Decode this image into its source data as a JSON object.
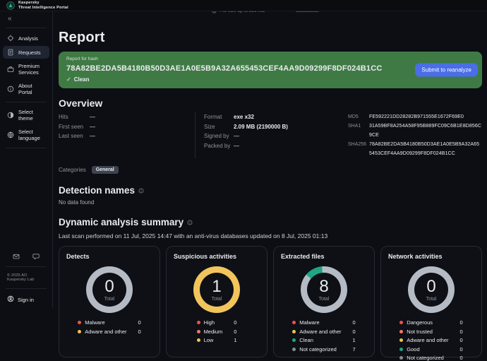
{
  "topbar": {
    "brand": "Kaspersky",
    "subtitle": "Threat Intelligence Portal"
  },
  "peek": {
    "clipped_text": "File size up to 256 MB"
  },
  "sidebar": {
    "collapse_glyph": "«",
    "nav": [
      {
        "label": "Analysis"
      },
      {
        "label": "Requests"
      },
      {
        "label": "Premium Services"
      },
      {
        "label": "About Portal"
      }
    ],
    "preferences": [
      {
        "label": "Select theme"
      },
      {
        "label": "Select language"
      }
    ],
    "copyright": "© 2025 AO Kaspersky Lab",
    "sign_in": "Sign in"
  },
  "main": {
    "report_title": "Report",
    "banner": {
      "label": "Report for hash",
      "hash": "78A82BE2DA5B4180B50D3AE1A0E5B9A32A655453CEF4AA9D09299F8DF024B1CC",
      "verdict": "Clean",
      "check_glyph": "✓",
      "reanalyze_button": "Submit to reanalyze"
    },
    "overview": {
      "heading": "Overview",
      "stats": [
        {
          "label": "Hits",
          "value": "—"
        },
        {
          "label": "First seen",
          "value": "—"
        },
        {
          "label": "Last seen",
          "value": "—"
        }
      ],
      "file_info": [
        {
          "label": "Format",
          "value": "exe x32"
        },
        {
          "label": "Size",
          "value": "2.09 MB (2190000 B)"
        },
        {
          "label": "Signed by",
          "value": "—"
        },
        {
          "label": "Packed by",
          "value": "—"
        }
      ],
      "hashes": [
        {
          "label": "MD5",
          "value": "FE592221DD28282B971555E1672F69E0"
        },
        {
          "label": "SHA1",
          "value": "31A59BF8A254A58F95B889FC09C6B1E8D856C9CE"
        },
        {
          "label": "SHA256",
          "value": "78A82BE2DA5B4180B50D3AE1A0E5B9A32A655453CEF4AA9D09299F8DF024B1CC"
        }
      ],
      "categories_label": "Categories",
      "categories": [
        "General"
      ]
    },
    "detection_names": {
      "heading": "Detection names",
      "empty_text": "No data found"
    },
    "dynamic_summary": {
      "heading": "Dynamic analysis summary",
      "scan_text": "Last scan performed on 11 Jul, 2025 14:47 with an anti-virus databases updated on 8 Jul, 2025 01:13"
    },
    "cards": [
      {
        "title": "Detects",
        "total": "0",
        "total_label": "Total",
        "ring_start": 0,
        "ring": [
          {
            "color": "#b5bbc4",
            "fraction": 1
          }
        ],
        "legend": [
          {
            "color": "#f0524a",
            "label": "Malware",
            "value": "0"
          },
          {
            "color": "#f2c14e",
            "label": "Adware and other",
            "value": "0"
          }
        ]
      },
      {
        "title": "Suspicious activities",
        "total": "1",
        "total_label": "Total",
        "ring_start": 0,
        "ring": [
          {
            "color": "#f2c45c",
            "fraction": 1
          }
        ],
        "legend": [
          {
            "color": "#f0524a",
            "label": "High",
            "value": "0"
          },
          {
            "color": "#f3766d",
            "label": "Medium",
            "value": "0"
          },
          {
            "color": "#f2c14e",
            "label": "Low",
            "value": "1"
          }
        ]
      },
      {
        "title": "Extracted files",
        "total": "8",
        "total_label": "Total",
        "ring_start": -50,
        "ring": [
          {
            "color": "#1fa583",
            "fraction": 0.125
          },
          {
            "color": "#b5bbc4",
            "fraction": 0.875
          }
        ],
        "legend": [
          {
            "color": "#f0524a",
            "label": "Malware",
            "value": "0"
          },
          {
            "color": "#f2c14e",
            "label": "Adware and other",
            "value": "0"
          },
          {
            "color": "#1fa583",
            "label": "Clean",
            "value": "1"
          },
          {
            "color": "#868c96",
            "label": "Not categorized",
            "value": "7"
          }
        ]
      },
      {
        "title": "Network activities",
        "total": "0",
        "total_label": "Total",
        "ring_start": 0,
        "ring": [
          {
            "color": "#b5bbc4",
            "fraction": 1
          }
        ],
        "legend": [
          {
            "color": "#f0524a",
            "label": "Dangerous",
            "value": "0"
          },
          {
            "color": "#f3766d",
            "label": "Not trusted",
            "value": "0"
          },
          {
            "color": "#f2c14e",
            "label": "Adware and other",
            "value": "0"
          },
          {
            "color": "#1fa583",
            "label": "Good",
            "value": "0"
          },
          {
            "color": "#868c96",
            "label": "Not categorized",
            "value": "0"
          }
        ]
      }
    ]
  },
  "colors": {
    "banner_green": "#3f7a45",
    "button_blue": "#4a6de8",
    "ring_gray": "#b5bbc4",
    "ring_yellow": "#f2c45c",
    "ring_teal": "#1fa583"
  }
}
